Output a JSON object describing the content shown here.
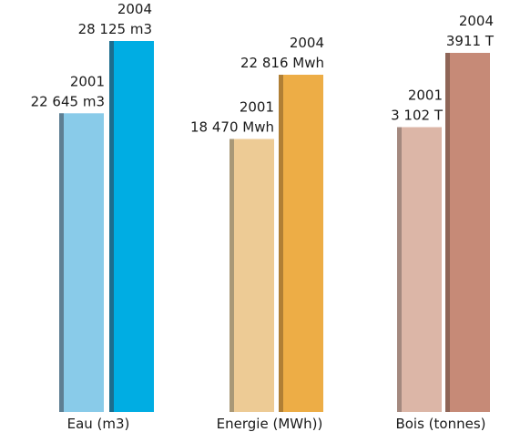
{
  "chart_data": {
    "type": "bar",
    "groups": [
      {
        "category": "Eau (m3)",
        "bars": [
          {
            "year": "2001",
            "value": 22645,
            "label": "22 645 m3",
            "colors": {
              "face": "#89CBE9",
              "edge": "#5E7F93"
            }
          },
          {
            "year": "2004",
            "value": 28125,
            "label": "28 125 m3",
            "colors": {
              "face": "#00ADE3",
              "edge": "#1D6D8E"
            }
          }
        ]
      },
      {
        "category": "Energie (MWh))",
        "bars": [
          {
            "year": "2001",
            "value": 18470,
            "label": "18 470 Mwh",
            "colors": {
              "face": "#EDCB95",
              "edge": "#A89877"
            }
          },
          {
            "year": "2004",
            "value": 22816,
            "label": "22 816 Mwh",
            "colors": {
              "face": "#EDAD46",
              "edge": "#B07F35"
            }
          }
        ]
      },
      {
        "category": "Bois (tonnes)",
        "bars": [
          {
            "year": "2001",
            "value": 3102,
            "label": "3 102 T",
            "colors": {
              "face": "#DCB6A7",
              "edge": "#A4897F"
            }
          },
          {
            "year": "2004",
            "value": 3911,
            "label": "3911 T",
            "colors": {
              "face": "#C68A77",
              "edge": "#8F6557"
            }
          }
        ]
      }
    ]
  }
}
